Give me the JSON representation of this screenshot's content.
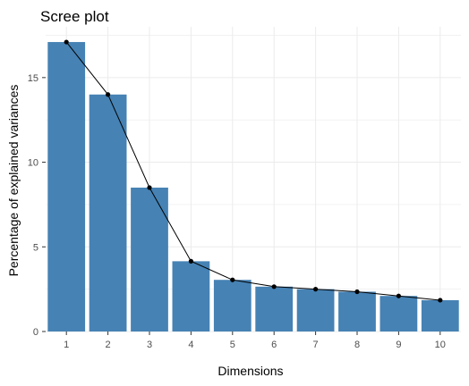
{
  "chart_data": {
    "type": "bar",
    "title": "Scree plot",
    "xlabel": "Dimensions",
    "ylabel": "Percentage of explained variances",
    "categories": [
      "1",
      "2",
      "3",
      "4",
      "5",
      "6",
      "7",
      "8",
      "9",
      "10"
    ],
    "values": [
      17.1,
      14.0,
      8.5,
      4.15,
      3.05,
      2.65,
      2.5,
      2.35,
      2.1,
      1.85
    ],
    "ylim": [
      0,
      18
    ],
    "yticks": [
      0,
      5,
      10,
      15
    ],
    "grid": true,
    "legend": "none",
    "line_overlay": true,
    "bar_color": "#4682B4",
    "line_color": "#000000",
    "grid_color": "#EBEBEB",
    "background_color": "#FFFFFF"
  }
}
